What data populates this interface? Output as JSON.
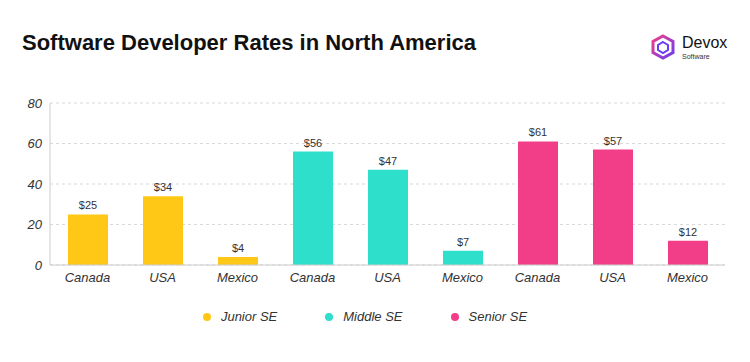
{
  "chart_data": {
    "type": "bar",
    "title": "Software Developer Rates in North America",
    "annotations": [
      "Devox",
      "Software"
    ],
    "categories": [
      "Canada",
      "USA",
      "Mexico",
      "Canada",
      "USA",
      "Mexico",
      "Canada",
      "USA",
      "Mexico"
    ],
    "series": [
      {
        "name": "Junior SE",
        "color": "#FFC716",
        "values": [
          25,
          34,
          4,
          null,
          null,
          null,
          null,
          null,
          null
        ],
        "value_labels": [
          "$25",
          "$34",
          "$4",
          null,
          null,
          null,
          null,
          null,
          null
        ]
      },
      {
        "name": "Middle SE",
        "color": "#2EDFCB",
        "values": [
          null,
          null,
          null,
          56,
          47,
          7,
          null,
          null,
          null
        ],
        "value_labels": [
          null,
          null,
          null,
          "$56",
          "$47",
          "$7",
          null,
          null,
          null
        ]
      },
      {
        "name": "Senior SE",
        "color": "#F23E88",
        "values": [
          null,
          null,
          null,
          null,
          null,
          null,
          61,
          57,
          12
        ],
        "value_labels": [
          null,
          null,
          null,
          null,
          null,
          null,
          "$61",
          "$57",
          "$12"
        ]
      }
    ],
    "ylim": [
      0,
      80
    ],
    "yticks": [
      0,
      20,
      40,
      60,
      80
    ],
    "grid": true,
    "legend": "bottom",
    "data_labels": true
  }
}
